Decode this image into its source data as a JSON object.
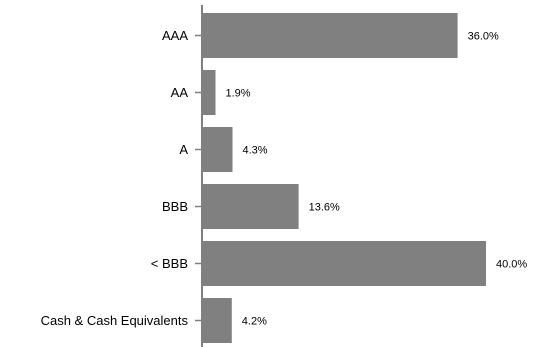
{
  "chart_data": {
    "type": "bar",
    "orientation": "horizontal",
    "title": "",
    "xlabel": "",
    "ylabel": "",
    "categories": [
      "AAA",
      "AA",
      "A",
      "BBB",
      "< BBB",
      "Cash & Cash Equivalents"
    ],
    "values": [
      36.0,
      1.9,
      4.3,
      13.6,
      40.0,
      4.2
    ],
    "value_labels": [
      "36.0%",
      "1.9%",
      "4.3%",
      "13.6%",
      "40.0%",
      "4.2%"
    ],
    "xlim": [
      0,
      40
    ],
    "grid": false,
    "legend": "none",
    "bar_color": "#808080",
    "axis_color": "#808080"
  }
}
